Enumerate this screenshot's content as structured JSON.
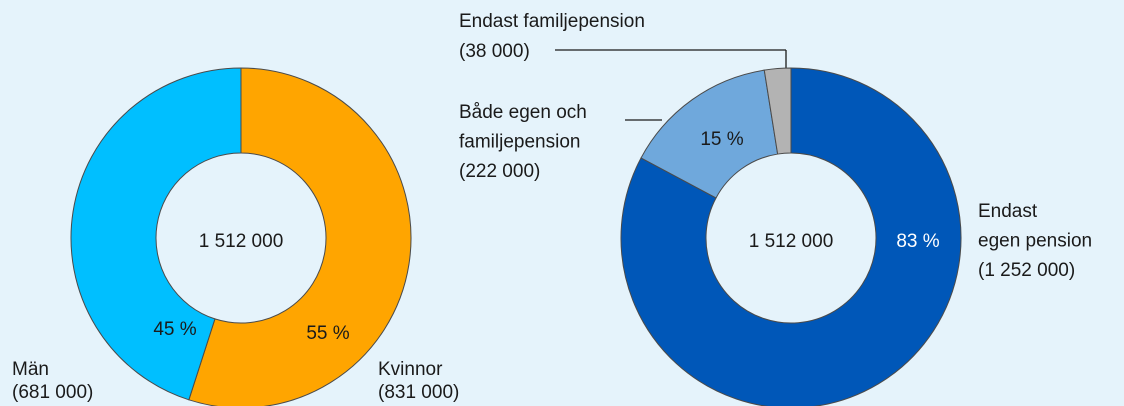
{
  "chart_data": [
    {
      "type": "donut",
      "center_label": "1 512 000",
      "categories": [
        "Kvinnor",
        "Män"
      ],
      "values": [
        831000,
        681000
      ],
      "value_labels": [
        "(831 000)",
        "(681 000)"
      ],
      "share_labels": [
        "55 %",
        "45 %"
      ],
      "colors": [
        "#ffa500",
        "#00bfff"
      ]
    },
    {
      "type": "donut",
      "center_label": "1 512 000",
      "categories": [
        "Endast egen pension",
        "Både egen och familjepension",
        "Endast familjepension"
      ],
      "values": [
        1252000,
        222000,
        38000
      ],
      "value_labels": [
        "(1 252 000)",
        "(222 000)",
        "(38 000)"
      ],
      "share_labels": [
        "83 %",
        "15 %",
        null
      ],
      "colors": [
        "#0057b8",
        "#6fa8dc",
        "#b3b3b3"
      ]
    }
  ]
}
